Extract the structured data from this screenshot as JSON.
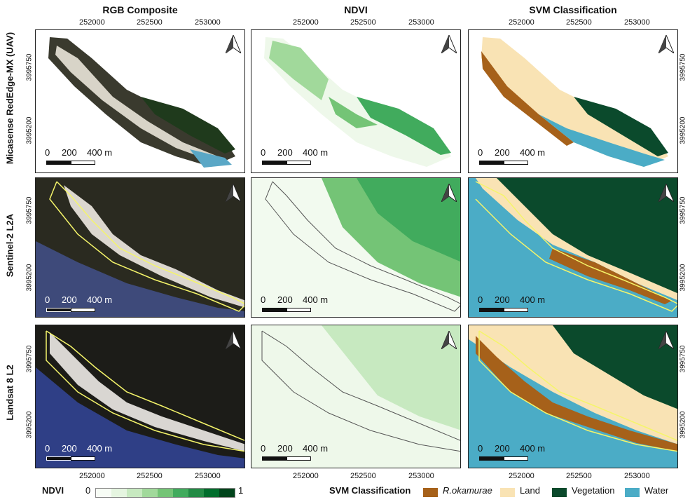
{
  "columns": [
    "RGB Composite",
    "NDVI",
    "SVM Classification"
  ],
  "rows": [
    "Micasense RedEdge-MX (UAV)",
    "Sentinel-2 L2A",
    "Landsat 8 L2"
  ],
  "x_ticks": [
    "252000",
    "252500",
    "253000"
  ],
  "y_ticks": [
    "3995750",
    "3995200"
  ],
  "scale_bar": {
    "zero": "0",
    "mid": "200",
    "end": "400 m"
  },
  "ndvi_legend": {
    "title": "NDVI",
    "min": "0",
    "max": "1",
    "ramp": [
      "#f7fcf5",
      "#e5f5e0",
      "#c7e9c0",
      "#a1d99b",
      "#74c476",
      "#41ab5d",
      "#238b45",
      "#006d2c",
      "#00441b"
    ]
  },
  "svm_legend": {
    "title": "SVM Classification",
    "items": [
      {
        "label": "R.okamurae",
        "color": "#a6611a",
        "italic": true
      },
      {
        "label": "Land",
        "color": "#f9e3b4",
        "italic": false
      },
      {
        "label": "Vegetation",
        "color": "#0b4a2c",
        "italic": false
      },
      {
        "label": "Water",
        "color": "#4bacc6",
        "italic": false
      }
    ]
  },
  "icons": [
    "north-arrow-icon"
  ]
}
